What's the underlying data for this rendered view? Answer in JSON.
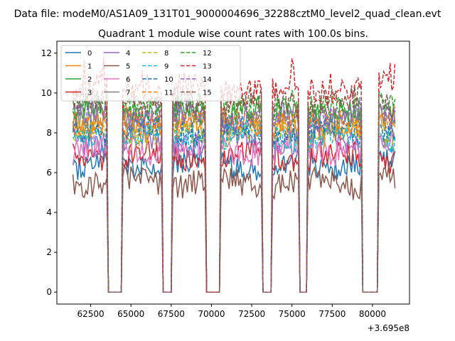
{
  "chart_data": {
    "type": "line",
    "suptitle": "Data file: modeM0/AS1A09_131T01_9000004696_32288cztM0_level2_quad_clean.evt",
    "title": "Quadrant 1 module wise count rates with 100.0s bins.",
    "xlabel": "",
    "ylabel": "",
    "x_offset_label": "+3.695e8",
    "xlim": [
      60400,
      82300
    ],
    "ylim": [
      -0.6,
      12.6
    ],
    "xticks": [
      62500,
      65000,
      67500,
      70000,
      72500,
      75000,
      77500,
      80000
    ],
    "xtick_labels": [
      "62500",
      "65000",
      "67500",
      "70000",
      "72500",
      "75000",
      "77500",
      "80000"
    ],
    "yticks": [
      0,
      2,
      4,
      6,
      8,
      10,
      12
    ],
    "ytick_labels": [
      "0",
      "2",
      "4",
      "6",
      "8",
      "10",
      "12"
    ],
    "legend_position": "top-left",
    "legend_columns": 4,
    "time_series_x0": 61400,
    "bin_seconds": 100,
    "active_windows": [
      [
        61400,
        63500
      ],
      [
        64500,
        66900
      ],
      [
        67600,
        69600
      ],
      [
        70600,
        73100
      ],
      [
        73800,
        75400
      ],
      [
        76000,
        79300
      ],
      [
        80400,
        81400
      ]
    ],
    "series": [
      {
        "name": "0",
        "color": "#1f77b4",
        "dash": "solid",
        "level": 6.4
      },
      {
        "name": "1",
        "color": "#ff7f0e",
        "dash": "solid",
        "level": 8.3
      },
      {
        "name": "2",
        "color": "#2ca02c",
        "dash": "solid",
        "level": 9.1
      },
      {
        "name": "3",
        "color": "#d62728",
        "dash": "solid",
        "level": 6.8
      },
      {
        "name": "4",
        "color": "#9467bd",
        "dash": "solid",
        "level": 7.6
      },
      {
        "name": "5",
        "color": "#8c564b",
        "dash": "solid",
        "level": 5.5
      },
      {
        "name": "6",
        "color": "#e377c2",
        "dash": "solid",
        "level": 7.2
      },
      {
        "name": "7",
        "color": "#7f7f7f",
        "dash": "solid",
        "level": 8.7
      },
      {
        "name": "8",
        "color": "#bcbd22",
        "dash": "dashed",
        "level": 8.0
      },
      {
        "name": "9",
        "color": "#17becf",
        "dash": "dashed",
        "level": 7.8
      },
      {
        "name": "10",
        "color": "#1f77b4",
        "dash": "dashed",
        "level": 8.2
      },
      {
        "name": "11",
        "color": "#ff7f0e",
        "dash": "dashed",
        "level": 8.6
      },
      {
        "name": "12",
        "color": "#2ca02c",
        "dash": "dashed",
        "level": 9.4
      },
      {
        "name": "13",
        "color": "#d62728",
        "dash": "dashed",
        "level": 10.2
      },
      {
        "name": "14",
        "color": "#9467bd",
        "dash": "dashed",
        "level": 8.9
      },
      {
        "name": "15",
        "color": "#8c564b",
        "dash": "dashed",
        "level": 9.6
      }
    ]
  }
}
